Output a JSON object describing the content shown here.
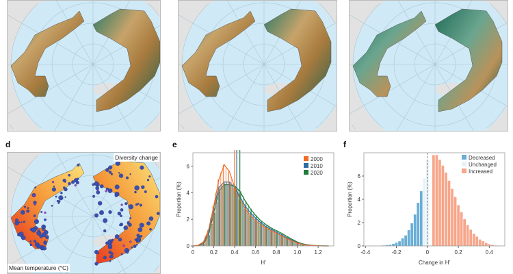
{
  "panels": {
    "d": {
      "label": "d",
      "tag": "Diversity change",
      "bottom_label": "Mean temperature (°C)"
    },
    "e": {
      "label": "e"
    },
    "f": {
      "label": "f"
    }
  },
  "colors": {
    "ocean": "#cfeaf6",
    "land": "#e2e2e2",
    "c2000": "#f26b21",
    "c2010": "#2f6da3",
    "c2020": "#1e7d3a",
    "decreased": "#6aaed6",
    "unchanged": "#e6f2f8",
    "increased": "#f7a68a"
  },
  "chart_data": [
    {
      "panel": "e",
      "type": "bar",
      "xlabel": "H'",
      "ylabel": "Proportion (%)",
      "xlim": [
        0,
        1.35
      ],
      "ylim": [
        0,
        7
      ],
      "xticks": [
        "0",
        "0.2",
        "0.4",
        "0.6",
        "0.8",
        "1.0",
        "1.2"
      ],
      "yticks": [
        "0",
        "2",
        "4",
        "6"
      ],
      "legend_position": "top-right",
      "x": [
        0,
        0.05,
        0.1,
        0.15,
        0.2,
        0.25,
        0.3,
        0.35,
        0.4,
        0.45,
        0.5,
        0.55,
        0.6,
        0.65,
        0.7,
        0.75,
        0.8,
        0.85,
        0.9,
        0.95,
        1.0,
        1.05,
        1.1,
        1.15,
        1.2,
        1.25,
        1.3
      ],
      "series": [
        {
          "name": "2000",
          "mean": 0.4,
          "values": [
            0,
            0.05,
            0.3,
            1.2,
            3.0,
            5.0,
            6.1,
            5.6,
            4.4,
            3.5,
            2.8,
            2.3,
            1.9,
            1.6,
            1.35,
            1.15,
            0.95,
            0.75,
            0.55,
            0.38,
            0.22,
            0.12,
            0.06,
            0.03,
            0.01,
            0,
            0
          ]
        },
        {
          "name": "2010",
          "mean": 0.42,
          "values": [
            0,
            0.04,
            0.25,
            1.0,
            2.9,
            4.4,
            4.8,
            4.8,
            4.4,
            3.7,
            3.0,
            2.5,
            2.1,
            1.75,
            1.45,
            1.25,
            1.05,
            0.85,
            0.62,
            0.42,
            0.25,
            0.13,
            0.07,
            0.03,
            0.01,
            0,
            0
          ]
        },
        {
          "name": "2020",
          "mean": 0.45,
          "values": [
            0,
            0.02,
            0.15,
            0.8,
            2.5,
            4.1,
            4.6,
            4.6,
            4.5,
            4.1,
            3.4,
            2.8,
            2.3,
            1.9,
            1.6,
            1.35,
            1.15,
            0.95,
            0.72,
            0.5,
            0.3,
            0.16,
            0.08,
            0.04,
            0.02,
            0.01,
            0
          ]
        }
      ]
    },
    {
      "panel": "f",
      "type": "bar",
      "xlabel": "Change in H'",
      "ylabel": "Proportion (%)",
      "xlim": [
        -0.41,
        0.5
      ],
      "ylim": [
        0,
        8
      ],
      "xticks": [
        "-0.4",
        "-0.2",
        "0",
        "0.2",
        "0.4"
      ],
      "yticks": [
        "0",
        "2",
        "4",
        "6"
      ],
      "legend_position": "top-right",
      "legend": [
        "Decreased",
        "Unchanged",
        "Increased"
      ],
      "bin_width": 0.02,
      "x": [
        -0.3,
        -0.28,
        -0.26,
        -0.24,
        -0.22,
        -0.2,
        -0.18,
        -0.16,
        -0.14,
        -0.12,
        -0.1,
        -0.08,
        -0.06,
        -0.04,
        -0.02,
        0.0,
        0.04,
        0.06,
        0.08,
        0.1,
        0.12,
        0.14,
        0.16,
        0.18,
        0.2,
        0.22,
        0.24,
        0.26,
        0.28,
        0.3,
        0.32,
        0.34,
        0.36,
        0.38,
        0.4,
        0.42,
        0.44,
        0.46
      ],
      "values": [
        0.02,
        0.04,
        0.07,
        0.1,
        0.18,
        0.28,
        0.4,
        0.65,
        0.9,
        1.35,
        1.95,
        2.7,
        3.7,
        4.7,
        5.8,
        7.4,
        7.8,
        7.8,
        7.4,
        6.9,
        6.3,
        5.6,
        4.9,
        4.2,
        3.5,
        2.9,
        2.3,
        1.8,
        1.4,
        1.05,
        0.8,
        0.55,
        0.4,
        0.25,
        0.15,
        0.08,
        0.04,
        0.02
      ],
      "category": [
        "Decreased",
        "Decreased",
        "Decreased",
        "Decreased",
        "Decreased",
        "Decreased",
        "Decreased",
        "Decreased",
        "Decreased",
        "Decreased",
        "Decreased",
        "Decreased",
        "Decreased",
        "Decreased",
        "Unchanged",
        "Unchanged",
        "Increased",
        "Increased",
        "Increased",
        "Increased",
        "Increased",
        "Increased",
        "Increased",
        "Increased",
        "Increased",
        "Increased",
        "Increased",
        "Increased",
        "Increased",
        "Increased",
        "Increased",
        "Increased",
        "Increased",
        "Increased",
        "Increased",
        "Increased",
        "Increased",
        "Increased"
      ]
    }
  ]
}
